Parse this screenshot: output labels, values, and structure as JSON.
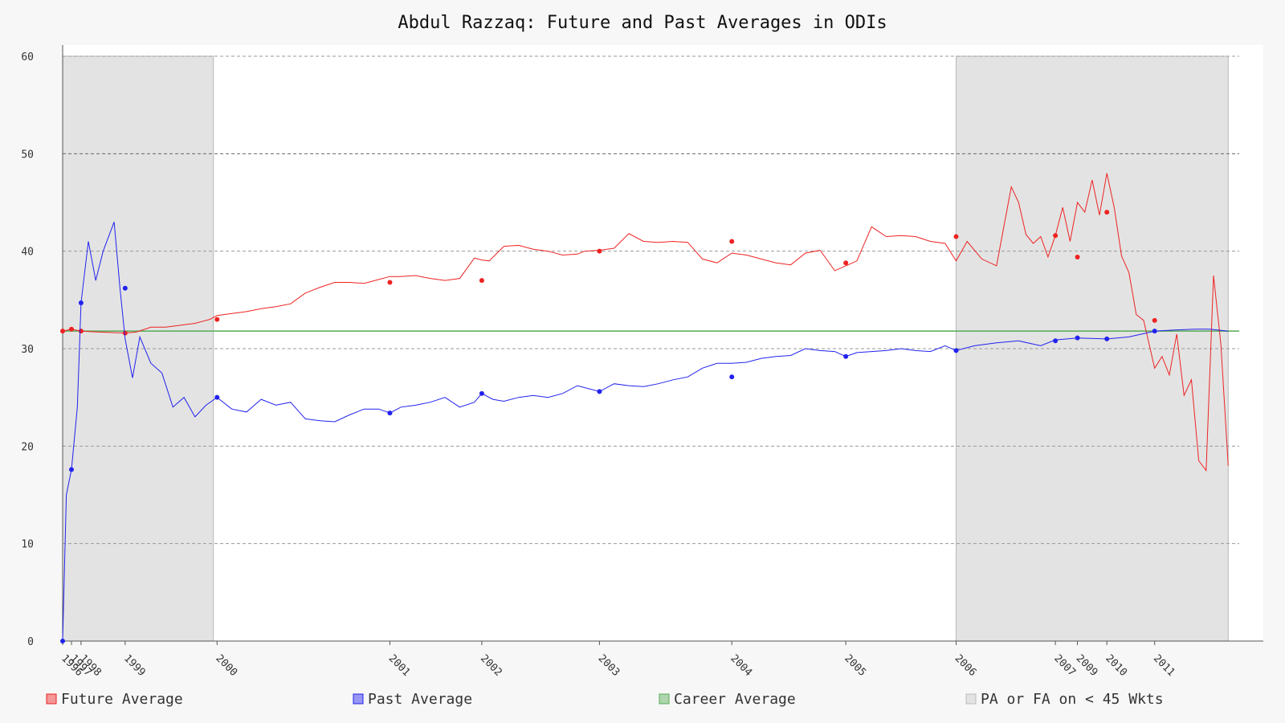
{
  "chart_data": {
    "type": "line",
    "title": "Abdul Razzaq: Future and Past Averages in ODIs",
    "xlabel": "",
    "ylabel": "",
    "ylim": [
      0,
      60
    ],
    "xlim": [
      1996.0,
      2012.0
    ],
    "yticks": [
      0,
      10,
      20,
      30,
      40,
      50,
      60
    ],
    "xticks": [
      {
        "label": "1996",
        "x": 1996.0
      },
      {
        "label": "1997",
        "x": 1996.12
      },
      {
        "label": "1998",
        "x": 1996.25
      },
      {
        "label": "1999",
        "x": 1996.85
      },
      {
        "label": "2000",
        "x": 1998.1
      },
      {
        "label": "2001",
        "x": 2000.45
      },
      {
        "label": "2002",
        "x": 2001.7
      },
      {
        "label": "2003",
        "x": 2003.3
      },
      {
        "label": "2004",
        "x": 2005.1
      },
      {
        "label": "2005",
        "x": 2006.65
      },
      {
        "label": "2006",
        "x": 2008.15
      },
      {
        "label": "2007",
        "x": 2009.5
      },
      {
        "label": "2009",
        "x": 2009.8
      },
      {
        "label": "2010",
        "x": 2010.2
      },
      {
        "label": "2011",
        "x": 2010.85
      }
    ],
    "grid": true,
    "legend_position": "bottom",
    "shaded_regions": [
      {
        "label": "PA or FA on < 45 Wkts",
        "x_start": 1996.0,
        "x_end": 1998.05
      },
      {
        "label": "PA or FA on < 45 Wkts",
        "x_start": 2008.15,
        "x_end": 2011.85
      }
    ],
    "career_average": 31.8,
    "colors": {
      "future": "#ee2222",
      "past": "#2222ee",
      "career": "#55aa55",
      "shade": "#e3e3e3"
    },
    "series": [
      {
        "name": "Future Average",
        "x": [
          1996.0,
          1996.12,
          1996.25,
          1996.5,
          1996.85,
          1997.0,
          1997.2,
          1997.4,
          1997.6,
          1997.8,
          1998.0,
          1998.1,
          1998.3,
          1998.5,
          1998.7,
          1998.9,
          1999.1,
          1999.3,
          1999.5,
          1999.7,
          1999.9,
          2000.1,
          2000.3,
          2000.45,
          2000.6,
          2000.8,
          2001.0,
          2001.2,
          2001.4,
          2001.6,
          2001.7,
          2001.8,
          2002.0,
          2002.2,
          2002.4,
          2002.6,
          2002.8,
          2003.0,
          2003.1,
          2003.3,
          2003.5,
          2003.7,
          2003.9,
          2004.1,
          2004.3,
          2004.5,
          2004.7,
          2004.9,
          2005.1,
          2005.3,
          2005.5,
          2005.7,
          2005.9,
          2006.1,
          2006.3,
          2006.5,
          2006.65,
          2006.8,
          2007.0,
          2007.2,
          2007.4,
          2007.6,
          2007.8,
          2008.0,
          2008.15,
          2008.3,
          2008.5,
          2008.7,
          2008.9,
          2009.0,
          2009.1,
          2009.2,
          2009.3,
          2009.4,
          2009.5,
          2009.6,
          2009.7,
          2009.8,
          2009.9,
          2010.0,
          2010.1,
          2010.2,
          2010.3,
          2010.4,
          2010.5,
          2010.6,
          2010.7,
          2010.85,
          2010.95,
          2011.05,
          2011.15,
          2011.25,
          2011.35,
          2011.45,
          2011.55,
          2011.65,
          2011.75,
          2011.85
        ],
        "values": [
          31.8,
          32.0,
          31.8,
          31.7,
          31.6,
          31.7,
          32.2,
          32.2,
          32.4,
          32.6,
          33.0,
          33.4,
          33.6,
          33.8,
          34.1,
          34.3,
          34.6,
          35.7,
          36.3,
          36.8,
          36.8,
          36.7,
          37.1,
          37.4,
          37.4,
          37.5,
          37.2,
          37.0,
          37.2,
          39.3,
          39.1,
          39.0,
          40.5,
          40.6,
          40.2,
          40.0,
          39.6,
          39.7,
          40.0,
          40.1,
          40.3,
          41.8,
          41.0,
          40.9,
          41.0,
          40.9,
          39.2,
          38.8,
          39.8,
          39.6,
          39.2,
          38.8,
          38.6,
          39.8,
          40.1,
          38.0,
          38.5,
          39.0,
          42.5,
          41.5,
          41.6,
          41.5,
          41.0,
          40.8,
          39.0,
          41.0,
          39.2,
          38.5,
          46.6,
          45.0,
          41.7,
          40.8,
          41.5,
          39.4,
          41.6,
          44.5,
          41.0,
          45.0,
          44.0,
          47.3,
          43.7,
          48.0,
          44.5,
          39.5,
          37.8,
          33.5,
          32.9,
          28.0,
          29.2,
          27.3,
          31.5,
          25.2,
          26.8,
          18.5,
          17.5,
          37.5,
          30.5,
          18.0
        ],
        "marker_x": [
          1996.0,
          1996.12,
          1996.25,
          1996.85,
          1998.1,
          2000.45,
          2001.7,
          2003.3,
          2005.1,
          2006.65,
          2008.15,
          2009.5,
          2009.8,
          2010.2,
          2010.85
        ],
        "marker_values": [
          31.8,
          32.0,
          31.8,
          31.6,
          33.0,
          36.8,
          37.0,
          40.0,
          41.0,
          38.8,
          41.5,
          41.6,
          39.4,
          44.0,
          32.9
        ]
      },
      {
        "name": "Past Average",
        "x": [
          1996.0,
          1996.05,
          1996.12,
          1996.2,
          1996.25,
          1996.35,
          1996.45,
          1996.55,
          1996.7,
          1996.78,
          1996.85,
          1996.95,
          1997.05,
          1997.2,
          1997.35,
          1997.5,
          1997.65,
          1997.8,
          1997.95,
          1998.1,
          1998.3,
          1998.5,
          1998.7,
          1998.9,
          1999.1,
          1999.3,
          1999.5,
          1999.7,
          1999.9,
          2000.1,
          2000.3,
          2000.45,
          2000.6,
          2000.8,
          2001.0,
          2001.2,
          2001.4,
          2001.6,
          2001.7,
          2001.85,
          2002.0,
          2002.2,
          2002.4,
          2002.6,
          2002.8,
          2003.0,
          2003.3,
          2003.5,
          2003.7,
          2003.9,
          2004.1,
          2004.3,
          2004.5,
          2004.7,
          2004.9,
          2005.1,
          2005.3,
          2005.5,
          2005.7,
          2005.9,
          2006.1,
          2006.3,
          2006.5,
          2006.65,
          2006.8,
          2007.0,
          2007.2,
          2007.4,
          2007.6,
          2007.8,
          2008.0,
          2008.15,
          2008.4,
          2008.7,
          2009.0,
          2009.3,
          2009.5,
          2009.8,
          2010.2,
          2010.5,
          2010.85,
          2011.1,
          2011.4,
          2011.6,
          2011.85
        ],
        "values": [
          0.0,
          15.0,
          17.6,
          24.0,
          34.7,
          41.0,
          37.0,
          40.0,
          43.0,
          36.2,
          31.0,
          27.0,
          31.2,
          28.5,
          27.5,
          24.0,
          25.0,
          23.0,
          24.2,
          25.0,
          23.8,
          23.5,
          24.8,
          24.2,
          24.5,
          22.8,
          22.6,
          22.5,
          23.2,
          23.8,
          23.8,
          23.4,
          24.0,
          24.2,
          24.5,
          25.0,
          24.0,
          24.5,
          25.4,
          24.8,
          24.6,
          25.0,
          25.2,
          25.0,
          25.4,
          26.2,
          25.6,
          26.4,
          26.2,
          26.1,
          26.4,
          26.8,
          27.1,
          28.0,
          28.5,
          28.5,
          28.6,
          29.0,
          29.2,
          29.3,
          30.0,
          29.8,
          29.7,
          29.2,
          29.6,
          29.7,
          29.8,
          30.0,
          29.8,
          29.7,
          30.3,
          29.8,
          30.3,
          30.6,
          30.8,
          30.3,
          30.9,
          31.1,
          31.0,
          31.2,
          31.8,
          31.9,
          32.0,
          32.0,
          31.8
        ],
        "marker_x": [
          1996.0,
          1996.12,
          1996.25,
          1996.85,
          1998.1,
          2000.45,
          2001.7,
          2003.3,
          2005.1,
          2006.65,
          2008.15,
          2009.5,
          2009.8,
          2010.2,
          2010.85
        ],
        "marker_values": [
          0.0,
          17.6,
          34.7,
          36.2,
          25.0,
          23.4,
          25.4,
          25.6,
          27.1,
          29.2,
          29.8,
          30.8,
          31.1,
          31.0,
          31.8
        ]
      }
    ],
    "legend": [
      {
        "label": "Future Average",
        "color": "#ee2222"
      },
      {
        "label": "Past Average",
        "color": "#2222ee"
      },
      {
        "label": "Career Average",
        "color": "#55aa55"
      },
      {
        "label": "PA or FA on < 45 Wkts",
        "color": "#e3e3e3"
      }
    ]
  }
}
